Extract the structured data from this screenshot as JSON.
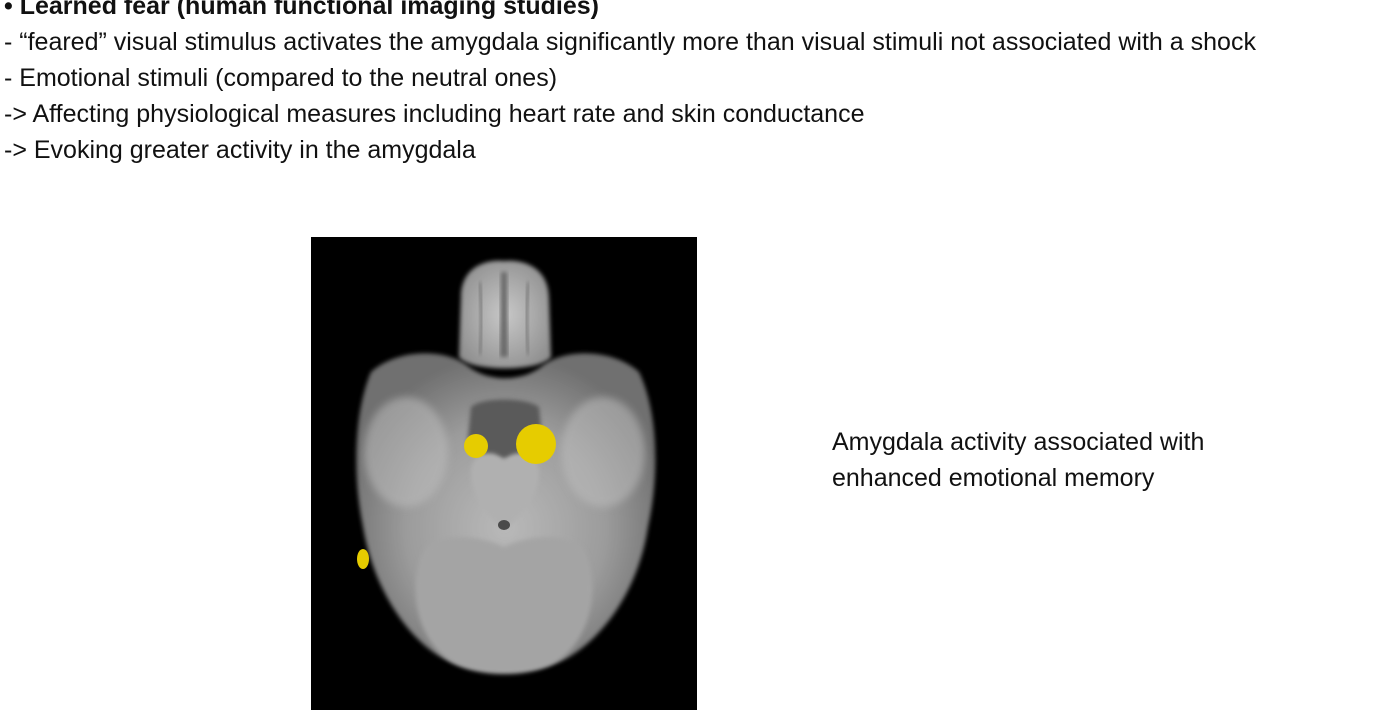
{
  "heading": {
    "bullet": "•",
    "text": "Learned fear (human functional imaging studies)"
  },
  "lines": [
    "- “feared” visual stimulus activates the amygdala significantly more than visual stimuli not associated with a shock",
    "- Emotional stimuli (compared to the neutral ones)",
    "-> Affecting physiological measures including heart rate and skin conductance",
    "-> Evoking greater activity in the amygdala"
  ],
  "figure": {
    "activation_color": "#e6cc00"
  },
  "caption": {
    "line1": "Amygdala activity associated with",
    "line2": "enhanced emotional memory"
  }
}
